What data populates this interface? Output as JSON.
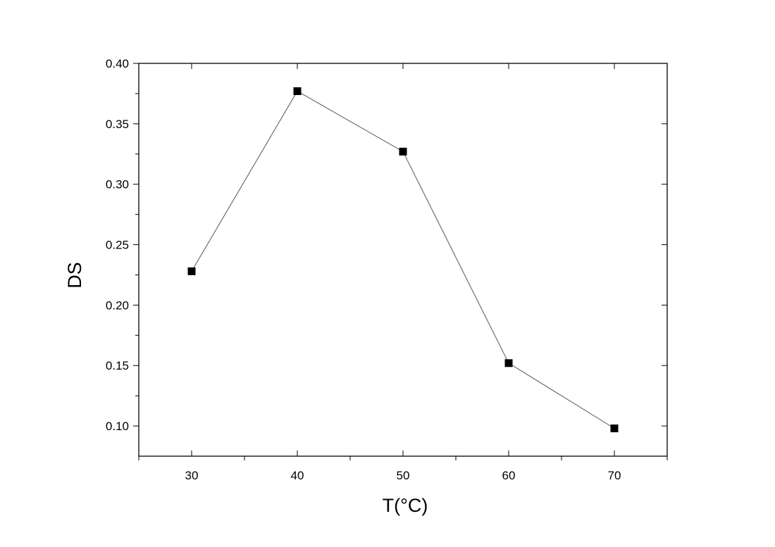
{
  "chart_data": {
    "type": "line",
    "title": "",
    "xlabel": "T(°C)",
    "ylabel": "DS",
    "xlim": [
      25,
      75
    ],
    "ylim": [
      0.075,
      0.4
    ],
    "x_ticks": [
      30,
      40,
      50,
      60,
      70
    ],
    "x_minor_ticks": [
      25,
      35,
      45,
      55,
      65,
      75
    ],
    "y_ticks": [
      0.1,
      0.15,
      0.2,
      0.25,
      0.3,
      0.35,
      0.4
    ],
    "x_tick_labels": [
      "30",
      "40",
      "50",
      "60",
      "70"
    ],
    "y_tick_labels": [
      "0.10",
      "0.15",
      "0.20",
      "0.25",
      "0.30",
      "0.35",
      "0.40"
    ],
    "grid": false,
    "legend": "none",
    "marker": "square",
    "line_color": "#555555",
    "marker_color": "#000000",
    "series": [
      {
        "x": [
          30,
          40,
          50,
          60,
          70
        ],
        "y": [
          0.228,
          0.377,
          0.327,
          0.152,
          0.098
        ]
      }
    ]
  }
}
